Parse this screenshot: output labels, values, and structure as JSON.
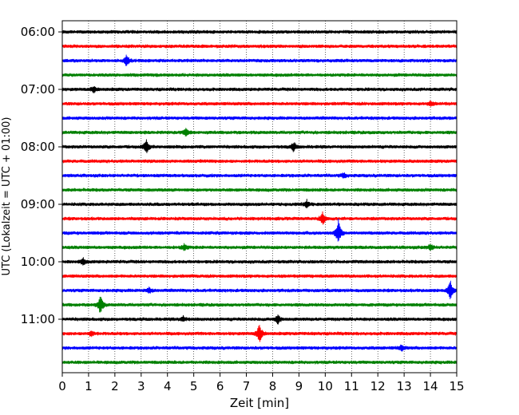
{
  "chart_data": {
    "type": "line",
    "title": "",
    "xlabel": "Zeit  [min]",
    "ylabel": "UTC (Lokalzeit = UTC + 01:00)",
    "xlim": [
      0,
      15
    ],
    "x_ticks": [
      0,
      1,
      2,
      3,
      4,
      5,
      6,
      7,
      8,
      9,
      10,
      11,
      12,
      13,
      14,
      15
    ],
    "grid": "vertical-dotted",
    "legend": "none",
    "row_interval_min": 15,
    "row_colors": [
      "#000000",
      "#ff0000",
      "#0000ff",
      "#008000"
    ],
    "rows": [
      "06:00",
      "06:15",
      "06:30",
      "06:45",
      "07:00",
      "07:15",
      "07:30",
      "07:45",
      "08:00",
      "08:15",
      "08:30",
      "08:45",
      "09:00",
      "09:15",
      "09:30",
      "09:45",
      "10:00",
      "10:15",
      "10:30",
      "10:45",
      "11:00",
      "11:15",
      "11:30",
      "11:45"
    ],
    "y_tick_labels": [
      "06:00",
      "07:00",
      "08:00",
      "09:00",
      "10:00",
      "11:00"
    ],
    "events": [
      {
        "row": "06:30",
        "x": 2.45,
        "amplitude": 0.4
      },
      {
        "row": "07:00",
        "x": 1.2,
        "amplitude": 0.2
      },
      {
        "row": "07:15",
        "x": 14.0,
        "amplitude": 0.15
      },
      {
        "row": "07:45",
        "x": 4.7,
        "amplitude": 0.3
      },
      {
        "row": "08:00",
        "x": 3.2,
        "amplitude": 0.45
      },
      {
        "row": "08:00",
        "x": 8.8,
        "amplitude": 0.3
      },
      {
        "row": "08:30",
        "x": 10.7,
        "amplitude": 0.15
      },
      {
        "row": "09:00",
        "x": 9.3,
        "amplitude": 0.25
      },
      {
        "row": "09:15",
        "x": 9.9,
        "amplitude": 0.45
      },
      {
        "row": "09:30",
        "x": 10.5,
        "amplitude": 0.9
      },
      {
        "row": "09:45",
        "x": 4.65,
        "amplitude": 0.25
      },
      {
        "row": "09:45",
        "x": 14.0,
        "amplitude": 0.2
      },
      {
        "row": "10:00",
        "x": 0.8,
        "amplitude": 0.2
      },
      {
        "row": "10:30",
        "x": 3.3,
        "amplitude": 0.2
      },
      {
        "row": "10:30",
        "x": 14.75,
        "amplitude": 0.7
      },
      {
        "row": "10:45",
        "x": 1.45,
        "amplitude": 0.65
      },
      {
        "row": "11:00",
        "x": 4.6,
        "amplitude": 0.2
      },
      {
        "row": "11:00",
        "x": 8.2,
        "amplitude": 0.35
      },
      {
        "row": "11:15",
        "x": 1.1,
        "amplitude": 0.2
      },
      {
        "row": "11:15",
        "x": 7.5,
        "amplitude": 0.7
      },
      {
        "row": "11:30",
        "x": 12.9,
        "amplitude": 0.2
      }
    ]
  }
}
